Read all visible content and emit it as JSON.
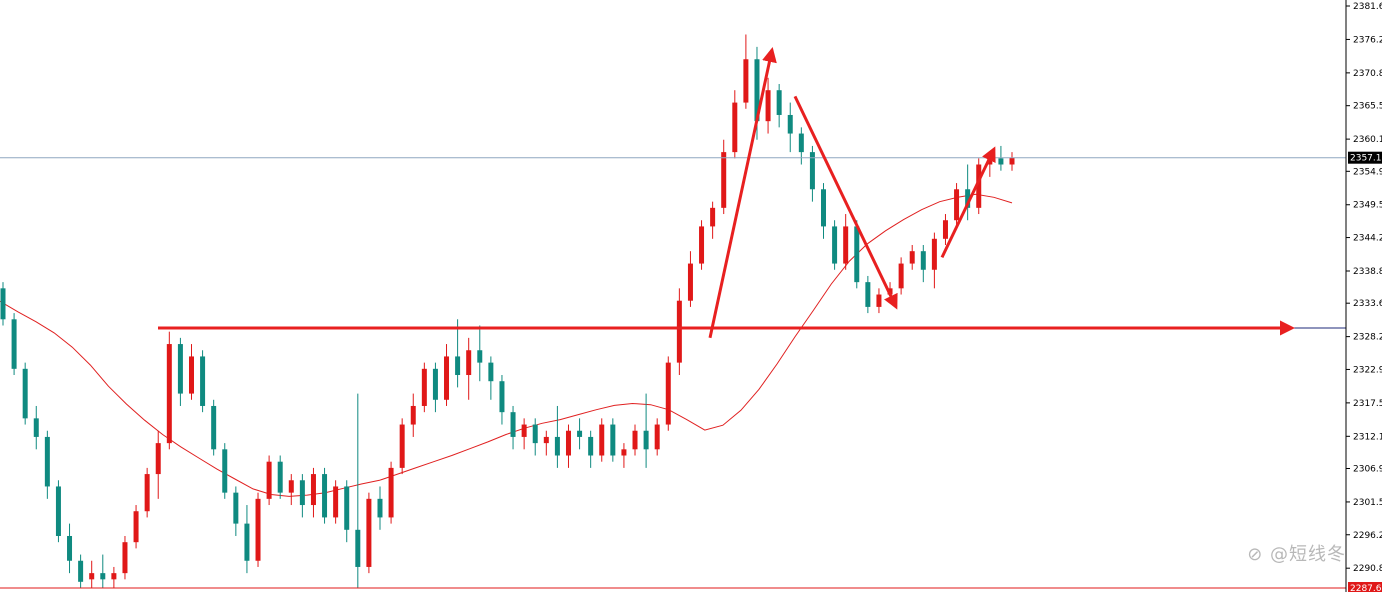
{
  "chart_data": {
    "type": "candlestick",
    "title": "",
    "xlabel": "",
    "ylabel": "",
    "ylim": [
      2287.6,
      2381.6
    ],
    "price_ticks": [
      "2381.6",
      "2376.2",
      "2370.8",
      "2365.5",
      "2360.1",
      "2354.9",
      "2349.5",
      "2344.2",
      "2338.8",
      "2333.6",
      "2328.2",
      "2322.9",
      "2317.5",
      "2312.1",
      "2306.9",
      "2301.5",
      "2296.2",
      "2290.8"
    ],
    "current_price": 2357.1,
    "current_price_label": "2357.1",
    "bottom_price": 2287.6,
    "bottom_price_label": "2287.6",
    "support_level": 2329.6,
    "grid": false,
    "moving_average": {
      "color": "#e02020",
      "values": [
        2333.9,
        2332.2,
        2330.6,
        2328.8,
        2326.5,
        2323.6,
        2320.2,
        2317.3,
        2314.7,
        2312.4,
        2310.4,
        2308.6,
        2306.8,
        2305.2,
        2303.6,
        2302.7,
        2302.4,
        2302.6,
        2303.0,
        2303.7,
        2304.4,
        2305.0,
        2306.0,
        2307.0,
        2308.0,
        2309.0,
        2310.1,
        2311.2,
        2312.4,
        2313.4,
        2314.2,
        2314.8,
        2315.6,
        2316.4,
        2317.1,
        2317.4,
        2317.2,
        2316.4,
        2314.8,
        2313.1,
        2313.9,
        2316.3,
        2319.7,
        2323.8,
        2328.2,
        2332.4,
        2336.7,
        2340.4,
        2343.2,
        2345.3,
        2347.1,
        2348.7,
        2350.0,
        2350.7,
        2351.2,
        2350.7,
        2349.8
      ]
    },
    "candles": [
      {
        "o": 2336,
        "h": 2337,
        "l": 2330,
        "c": 2331
      },
      {
        "o": 2331,
        "h": 2332,
        "l": 2322,
        "c": 2323
      },
      {
        "o": 2323,
        "h": 2324,
        "l": 2314,
        "c": 2315
      },
      {
        "o": 2315,
        "h": 2317,
        "l": 2310,
        "c": 2312
      },
      {
        "o": 2312,
        "h": 2313,
        "l": 2302,
        "c": 2304
      },
      {
        "o": 2304,
        "h": 2305,
        "l": 2295,
        "c": 2296
      },
      {
        "o": 2296,
        "h": 2298,
        "l": 2290,
        "c": 2292
      },
      {
        "o": 2292,
        "h": 2293,
        "l": 2287.6,
        "c": 2288.6
      },
      {
        "o": 2289,
        "h": 2292,
        "l": 2287.6,
        "c": 2290
      },
      {
        "o": 2290,
        "h": 2293,
        "l": 2287.6,
        "c": 2289
      },
      {
        "o": 2289,
        "h": 2291,
        "l": 2287.6,
        "c": 2290
      },
      {
        "o": 2290,
        "h": 2296,
        "l": 2289,
        "c": 2295
      },
      {
        "o": 2295,
        "h": 2301,
        "l": 2294,
        "c": 2300
      },
      {
        "o": 2300,
        "h": 2307,
        "l": 2299,
        "c": 2306
      },
      {
        "o": 2306,
        "h": 2313,
        "l": 2302,
        "c": 2311
      },
      {
        "o": 2311,
        "h": 2329,
        "l": 2310,
        "c": 2327
      },
      {
        "o": 2327,
        "h": 2328,
        "l": 2317,
        "c": 2319
      },
      {
        "o": 2319,
        "h": 2327,
        "l": 2318,
        "c": 2325
      },
      {
        "o": 2325,
        "h": 2326,
        "l": 2316,
        "c": 2317
      },
      {
        "o": 2317,
        "h": 2318,
        "l": 2309,
        "c": 2310
      },
      {
        "o": 2310,
        "h": 2311,
        "l": 2302,
        "c": 2303
      },
      {
        "o": 2303,
        "h": 2304,
        "l": 2296,
        "c": 2298
      },
      {
        "o": 2298,
        "h": 2301,
        "l": 2290,
        "c": 2292
      },
      {
        "o": 2292,
        "h": 2303,
        "l": 2291,
        "c": 2302
      },
      {
        "o": 2302,
        "h": 2309,
        "l": 2301,
        "c": 2308
      },
      {
        "o": 2308,
        "h": 2309,
        "l": 2302,
        "c": 2303
      },
      {
        "o": 2303,
        "h": 2306,
        "l": 2301,
        "c": 2305
      },
      {
        "o": 2305,
        "h": 2306,
        "l": 2299,
        "c": 2301
      },
      {
        "o": 2301,
        "h": 2307,
        "l": 2299,
        "c": 2306
      },
      {
        "o": 2306,
        "h": 2307,
        "l": 2298,
        "c": 2299
      },
      {
        "o": 2299,
        "h": 2305,
        "l": 2298,
        "c": 2304
      },
      {
        "o": 2304,
        "h": 2305,
        "l": 2295,
        "c": 2297
      },
      {
        "o": 2297,
        "h": 2319,
        "l": 2287.6,
        "c": 2291
      },
      {
        "o": 2291,
        "h": 2303,
        "l": 2290,
        "c": 2302
      },
      {
        "o": 2302,
        "h": 2304,
        "l": 2297,
        "c": 2299
      },
      {
        "o": 2299,
        "h": 2308,
        "l": 2298,
        "c": 2307
      },
      {
        "o": 2307,
        "h": 2315,
        "l": 2306,
        "c": 2314
      },
      {
        "o": 2314,
        "h": 2319,
        "l": 2312,
        "c": 2317
      },
      {
        "o": 2317,
        "h": 2324,
        "l": 2316,
        "c": 2323
      },
      {
        "o": 2323,
        "h": 2324,
        "l": 2316,
        "c": 2318
      },
      {
        "o": 2318,
        "h": 2327,
        "l": 2317,
        "c": 2325
      },
      {
        "o": 2325,
        "h": 2331,
        "l": 2320,
        "c": 2322
      },
      {
        "o": 2322,
        "h": 2328,
        "l": 2318,
        "c": 2326
      },
      {
        "o": 2326,
        "h": 2330,
        "l": 2321,
        "c": 2324
      },
      {
        "o": 2324,
        "h": 2325,
        "l": 2318,
        "c": 2321
      },
      {
        "o": 2321,
        "h": 2322,
        "l": 2314,
        "c": 2316
      },
      {
        "o": 2316,
        "h": 2317,
        "l": 2310,
        "c": 2312
      },
      {
        "o": 2312,
        "h": 2315,
        "l": 2310,
        "c": 2314
      },
      {
        "o": 2314,
        "h": 2315,
        "l": 2309,
        "c": 2311
      },
      {
        "o": 2311,
        "h": 2313,
        "l": 2309,
        "c": 2312
      },
      {
        "o": 2312,
        "h": 2317,
        "l": 2307,
        "c": 2309
      },
      {
        "o": 2309,
        "h": 2314,
        "l": 2307,
        "c": 2313
      },
      {
        "o": 2313,
        "h": 2315,
        "l": 2310,
        "c": 2312
      },
      {
        "o": 2312,
        "h": 2313,
        "l": 2307,
        "c": 2309
      },
      {
        "o": 2309,
        "h": 2315,
        "l": 2308,
        "c": 2314
      },
      {
        "o": 2314,
        "h": 2315,
        "l": 2308,
        "c": 2309
      },
      {
        "o": 2309,
        "h": 2311,
        "l": 2307,
        "c": 2310
      },
      {
        "o": 2310,
        "h": 2314,
        "l": 2309,
        "c": 2313
      },
      {
        "o": 2313,
        "h": 2319,
        "l": 2307,
        "c": 2310
      },
      {
        "o": 2310,
        "h": 2315,
        "l": 2309,
        "c": 2314
      },
      {
        "o": 2314,
        "h": 2325,
        "l": 2313,
        "c": 2324
      },
      {
        "o": 2324,
        "h": 2336,
        "l": 2322,
        "c": 2334
      },
      {
        "o": 2334,
        "h": 2342,
        "l": 2333,
        "c": 2340
      },
      {
        "o": 2340,
        "h": 2347,
        "l": 2339,
        "c": 2346
      },
      {
        "o": 2346,
        "h": 2350,
        "l": 2344,
        "c": 2349
      },
      {
        "o": 2349,
        "h": 2360,
        "l": 2348,
        "c": 2358
      },
      {
        "o": 2358,
        "h": 2368,
        "l": 2357,
        "c": 2366
      },
      {
        "o": 2366,
        "h": 2377,
        "l": 2365,
        "c": 2373
      },
      {
        "o": 2373,
        "h": 2375,
        "l": 2360,
        "c": 2363
      },
      {
        "o": 2363,
        "h": 2370,
        "l": 2361,
        "c": 2368
      },
      {
        "o": 2368,
        "h": 2369,
        "l": 2362,
        "c": 2364
      },
      {
        "o": 2364,
        "h": 2366,
        "l": 2358,
        "c": 2361
      },
      {
        "o": 2361,
        "h": 2362,
        "l": 2356,
        "c": 2358
      },
      {
        "o": 2358,
        "h": 2359,
        "l": 2350,
        "c": 2352
      },
      {
        "o": 2352,
        "h": 2353,
        "l": 2344,
        "c": 2346
      },
      {
        "o": 2346,
        "h": 2347,
        "l": 2339,
        "c": 2340
      },
      {
        "o": 2340,
        "h": 2348,
        "l": 2339,
        "c": 2346
      },
      {
        "o": 2346,
        "h": 2347,
        "l": 2336,
        "c": 2337
      },
      {
        "o": 2337,
        "h": 2338,
        "l": 2332,
        "c": 2333
      },
      {
        "o": 2333,
        "h": 2336,
        "l": 2332,
        "c": 2335
      },
      {
        "o": 2335,
        "h": 2337,
        "l": 2334,
        "c": 2336
      },
      {
        "o": 2336,
        "h": 2341,
        "l": 2335,
        "c": 2340
      },
      {
        "o": 2340,
        "h": 2343,
        "l": 2339,
        "c": 2342
      },
      {
        "o": 2342,
        "h": 2343,
        "l": 2337,
        "c": 2339
      },
      {
        "o": 2339,
        "h": 2345,
        "l": 2336,
        "c": 2344
      },
      {
        "o": 2344,
        "h": 2348,
        "l": 2343,
        "c": 2347
      },
      {
        "o": 2347,
        "h": 2353,
        "l": 2346,
        "c": 2352
      },
      {
        "o": 2352,
        "h": 2356,
        "l": 2347,
        "c": 2349
      },
      {
        "o": 2349,
        "h": 2357,
        "l": 2348,
        "c": 2356
      },
      {
        "o": 2356,
        "h": 2358,
        "l": 2354,
        "c": 2357
      },
      {
        "o": 2357,
        "h": 2359,
        "l": 2355,
        "c": 2356
      },
      {
        "o": 2356,
        "h": 2358,
        "l": 2355,
        "c": 2357.1
      }
    ],
    "colors": {
      "bullish": "#e01818",
      "bearish": "#0f8a80",
      "moving_average": "#e02020",
      "arrows": "#e82020",
      "current_price_line": "#8fa7c0",
      "support_line": "#1e2a7a",
      "axis": "#000000"
    }
  },
  "watermark": "⊘ @短线冬"
}
